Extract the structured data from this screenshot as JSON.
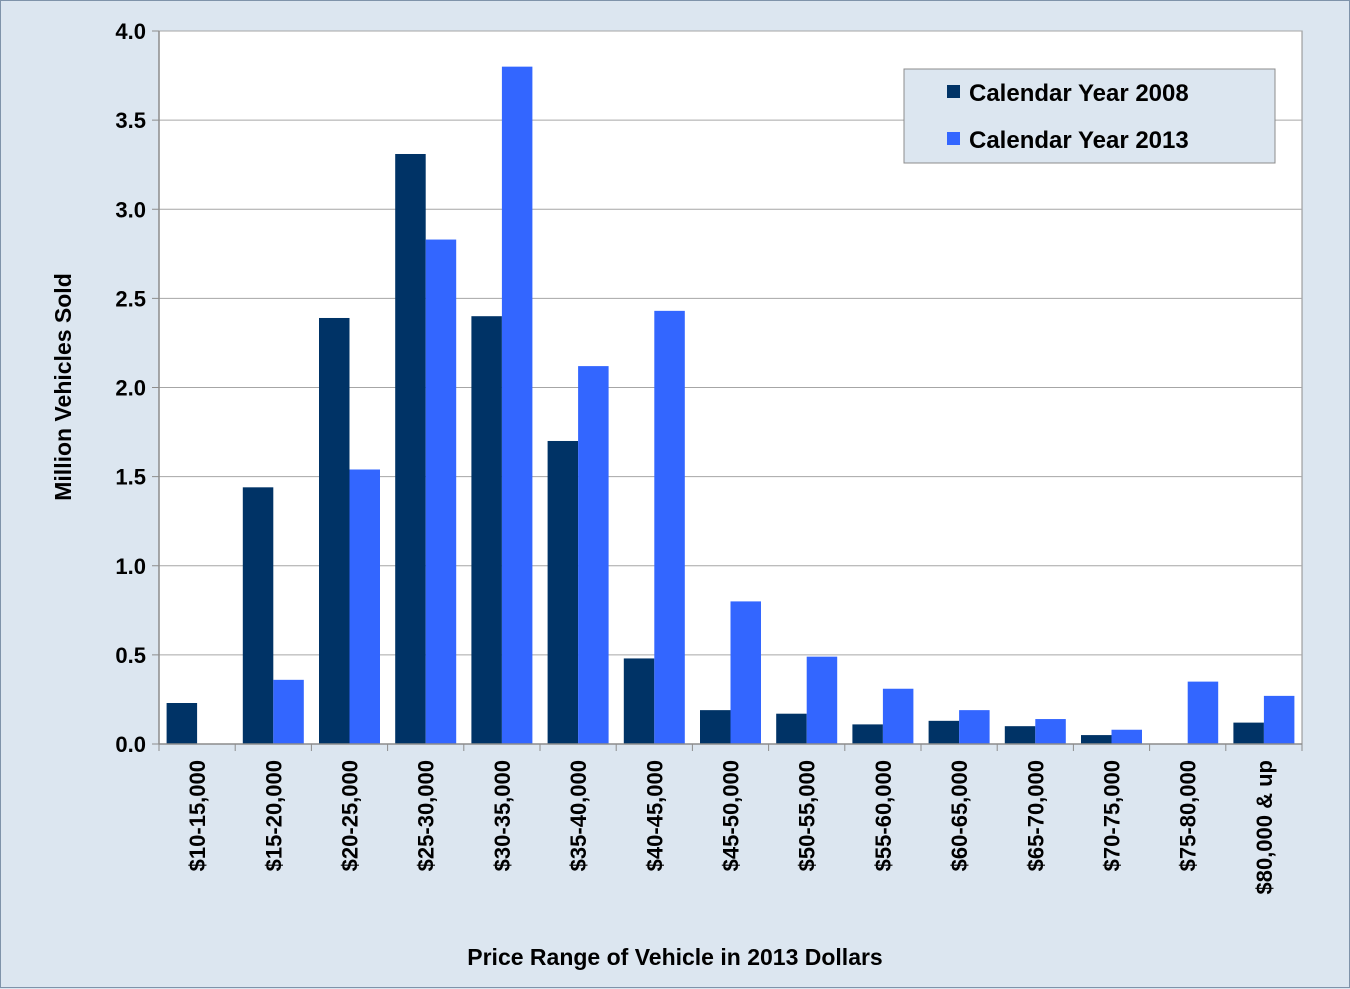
{
  "chart_data": {
    "type": "bar",
    "categories": [
      "$10-15,000",
      "$15-20,000",
      "$20-25,000",
      "$25-30,000",
      "$30-35,000",
      "$35-40,000",
      "$40-45,000",
      "$45-50,000",
      "$50-55,000",
      "$55-60,000",
      "$60-65,000",
      "$65-70,000",
      "$70-75,000",
      "$75-80,000",
      "$80,000 & up"
    ],
    "series": [
      {
        "name": "Calendar Year 2008",
        "color": "#003366",
        "values": [
          0.23,
          1.44,
          2.39,
          3.31,
          2.4,
          1.7,
          0.48,
          0.19,
          0.17,
          0.11,
          0.13,
          0.1,
          0.05,
          0.0,
          0.12
        ]
      },
      {
        "name": "Calendar Year 2013",
        "color": "#3366ff",
        "values": [
          0.0,
          0.36,
          1.54,
          2.83,
          3.8,
          2.12,
          2.43,
          0.8,
          0.49,
          0.31,
          0.19,
          0.14,
          0.08,
          0.35,
          0.27
        ]
      }
    ],
    "xlabel": "Price Range of Vehicle in 2013 Dollars",
    "ylabel": "Million Vehicles Sold",
    "ylim": [
      0,
      4.0
    ],
    "yticks": [
      "0.0",
      "0.5",
      "1.0",
      "1.5",
      "2.0",
      "2.5",
      "3.0",
      "3.5",
      "4.0"
    ],
    "grid": true,
    "legend_position": "top-right",
    "plot_background": "#ffffff",
    "page_background": "#dce6f0"
  }
}
